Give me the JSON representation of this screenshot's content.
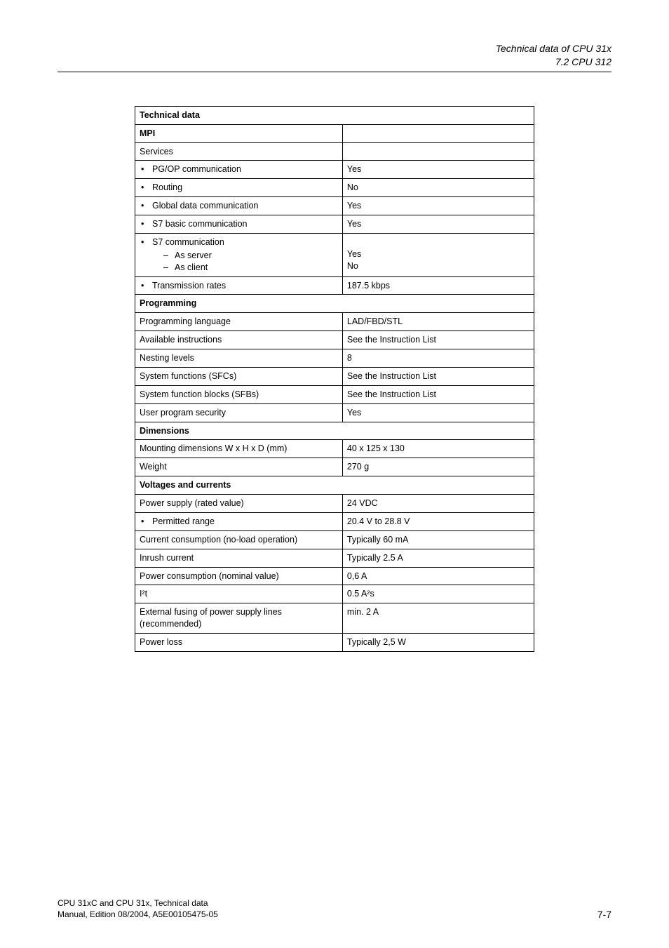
{
  "header": {
    "line1": "Technical data of CPU 31x",
    "line2": "7.2 CPU 312"
  },
  "table": {
    "title": "Technical data",
    "sections": {
      "mpi": {
        "header": "MPI",
        "services_label": "Services",
        "rows": {
          "pgop": {
            "label": "PG/OP communication",
            "value": "Yes"
          },
          "routing": {
            "label": "Routing",
            "value": "No"
          },
          "global": {
            "label": "Global data communication",
            "value": "Yes"
          },
          "s7basic": {
            "label": "S7 basic communication",
            "value": "Yes"
          },
          "s7comm": {
            "label": "S7 communication",
            "sub_server": "As server",
            "sub_client": "As client",
            "val_server": "Yes",
            "val_client": "No"
          },
          "trans": {
            "label": "Transmission rates",
            "value": "187.5 kbps"
          }
        }
      },
      "programming": {
        "header": "Programming",
        "rows": {
          "lang": {
            "label": "Programming language",
            "value": "LAD/FBD/STL"
          },
          "instr": {
            "label": "Available instructions",
            "value": "See the Instruction List"
          },
          "nesting": {
            "label": "Nesting levels",
            "value": "8"
          },
          "sfcs": {
            "label": "System functions (SFCs)",
            "value": "See the Instruction List"
          },
          "sfbs": {
            "label": "System function blocks (SFBs)",
            "value": "See the Instruction List"
          },
          "security": {
            "label": "User program security",
            "value": "Yes"
          }
        }
      },
      "dimensions": {
        "header": "Dimensions",
        "rows": {
          "mount": {
            "label": "Mounting dimensions W x H x D (mm)",
            "value": "40 x 125 x 130"
          },
          "weight": {
            "label": "Weight",
            "value": "270 g"
          }
        }
      },
      "voltages": {
        "header": "Voltages and currents",
        "rows": {
          "psu": {
            "label": "Power supply (rated value)",
            "value": "24 VDC"
          },
          "range": {
            "label": "Permitted range",
            "value": "20.4 V to 28.8 V"
          },
          "noload": {
            "label": "Current consumption (no-load operation)",
            "value": "Typically 60 mA"
          },
          "inrush": {
            "label": "Inrush current",
            "value": "Typically 2.5 A"
          },
          "pcons": {
            "label": "Power consumption (nominal value)",
            "value": "0,6 A"
          },
          "i2t": {
            "label": "I²t",
            "value": "0.5 A²s"
          },
          "fuse": {
            "label": "External fusing of power supply lines (recommended)",
            "value": "min. 2 A"
          },
          "ploss": {
            "label": "Power loss",
            "value": "Typically 2,5 W"
          }
        }
      }
    }
  },
  "footer": {
    "line1": "CPU 31xC and CPU 31x, Technical data",
    "line2": "Manual, Edition 08/2004, A5E00105475-05",
    "page": "7-7"
  }
}
